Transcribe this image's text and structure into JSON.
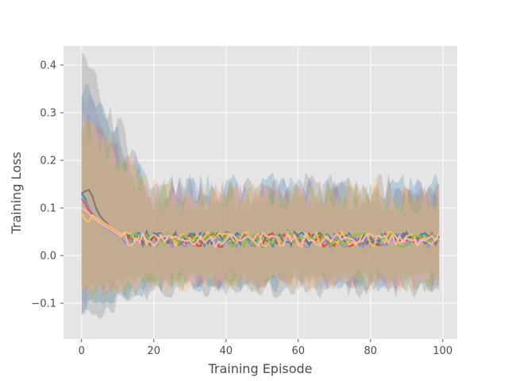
{
  "chart_data": {
    "type": "line",
    "title": "",
    "xlabel": "Training Episode",
    "ylabel": "Training Loss",
    "xlim": [
      -5,
      104
    ],
    "ylim": [
      -0.175,
      0.44
    ],
    "xticks": [
      0,
      20,
      40,
      60,
      80,
      100
    ],
    "yticks": [
      -0.1,
      0.0,
      0.1,
      0.2,
      0.3,
      0.4
    ],
    "ytick_labels": [
      "−0.1",
      "0.0",
      "0.1",
      "0.2",
      "0.3",
      "0.4"
    ],
    "grid": true,
    "style": "ggplot",
    "x_range": [
      0,
      99
    ],
    "series": [
      {
        "color": "#E24A33",
        "start": [
          0.12,
          0.11,
          0.095,
          0.085,
          0.08,
          0.075,
          0.07,
          0.062,
          0.058,
          0.052,
          0.045,
          0.04
        ],
        "tail_mean": 0.033,
        "band": {
          "upper_start": 0.3,
          "upper_tail": 0.12,
          "lower_start": -0.07,
          "lower_tail": -0.05
        }
      },
      {
        "color": "#348ABD",
        "start": [
          0.13,
          0.12,
          0.1,
          0.09,
          0.08,
          0.072,
          0.066,
          0.06,
          0.055,
          0.05,
          0.044,
          0.04
        ],
        "tail_mean": 0.034,
        "band": {
          "upper_start": 0.35,
          "upper_tail": 0.14,
          "lower_start": -0.11,
          "lower_tail": -0.06
        }
      },
      {
        "color": "#988ED5",
        "start": [
          0.12,
          0.115,
          0.1,
          0.09,
          0.08,
          0.07,
          0.065,
          0.058,
          0.052,
          0.048,
          0.043,
          0.04
        ],
        "tail_mean": 0.032,
        "band": {
          "upper_start": 0.33,
          "upper_tail": 0.13,
          "lower_start": -0.09,
          "lower_tail": -0.055
        }
      },
      {
        "color": "#777777",
        "start": [
          0.13,
          0.135,
          0.138,
          0.125,
          0.1,
          0.085,
          0.075,
          0.068,
          0.06,
          0.055,
          0.05,
          0.045
        ],
        "tail_mean": 0.036,
        "band": {
          "upper_start": 0.41,
          "upper_tail": 0.14,
          "lower_start": -0.13,
          "lower_tail": -0.07
        }
      },
      {
        "color": "#FBC15E",
        "start": [
          0.09,
          0.075,
          0.07,
          0.085,
          0.08,
          0.075,
          0.07,
          0.065,
          0.06,
          0.055,
          0.05,
          0.045
        ],
        "tail_mean": 0.035,
        "band": {
          "upper_start": 0.3,
          "upper_tail": 0.13,
          "lower_start": -0.08,
          "lower_tail": -0.06
        }
      },
      {
        "color": "#8EBA42",
        "start": [
          0.1,
          0.095,
          0.09,
          0.08,
          0.075,
          0.07,
          0.065,
          0.06,
          0.055,
          0.05,
          0.045,
          0.04
        ],
        "tail_mean": 0.033,
        "band": {
          "upper_start": 0.28,
          "upper_tail": 0.12,
          "lower_start": -0.08,
          "lower_tail": -0.05
        }
      },
      {
        "color": "#FFB5B8",
        "start": [
          0.1,
          0.095,
          0.09,
          0.08,
          0.075,
          0.07,
          0.065,
          0.06,
          0.055,
          0.05,
          0.045,
          0.04
        ],
        "tail_mean": 0.033,
        "band": {
          "upper_start": 0.28,
          "upper_tail": 0.12,
          "lower_start": -0.08,
          "lower_tail": -0.05
        }
      }
    ]
  }
}
